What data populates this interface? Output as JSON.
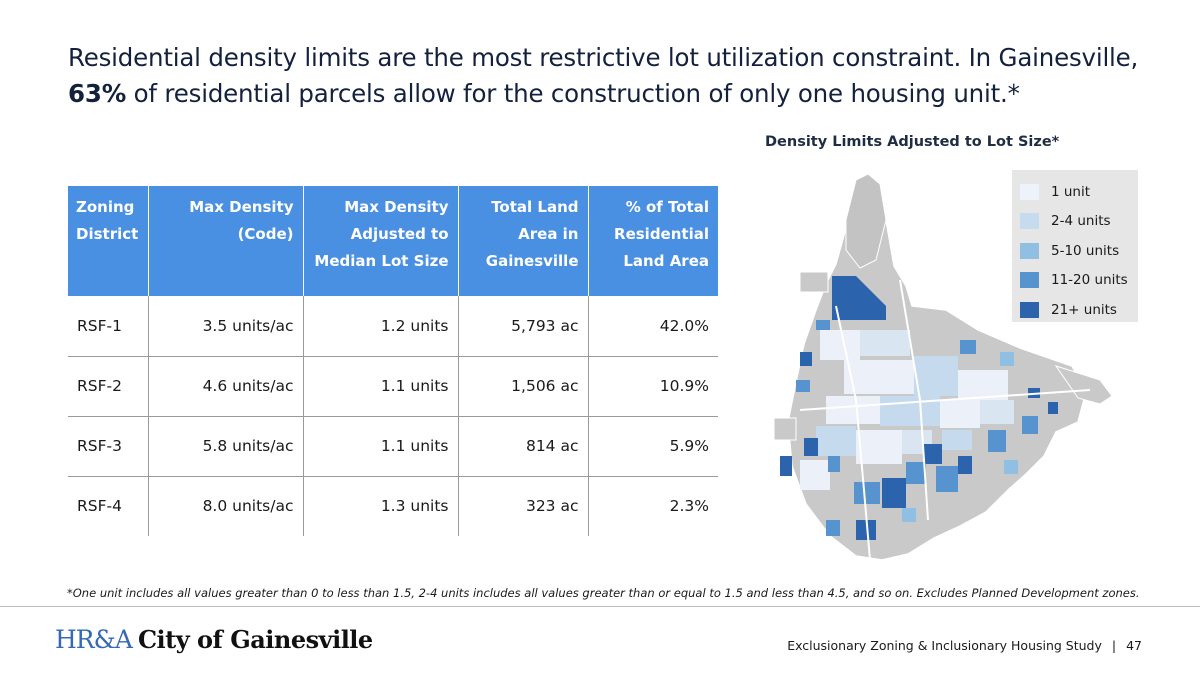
{
  "headline": {
    "part1": "Residential density limits are the most restrictive lot utilization constraint. In Gainesville, ",
    "emphasis": "63%",
    "part2": " of residential parcels allow for the construction of only one housing unit.*"
  },
  "table": {
    "headers": {
      "district": "Zoning District",
      "max_density": "Max Density (Code)",
      "adjusted": "Max Density Adjusted to Median Lot Size",
      "land_area": "Total Land Area in Gainesville",
      "pct": "% of Total Residential Land Area"
    },
    "rows": [
      {
        "district": "RSF-1",
        "max_density": "3.5 units/ac",
        "adjusted": "1.2 units",
        "land_area": "5,793 ac",
        "pct": "42.0%"
      },
      {
        "district": "RSF-2",
        "max_density": "4.6 units/ac",
        "adjusted": "1.1 units",
        "land_area": "1,506 ac",
        "pct": "10.9%"
      },
      {
        "district": "RSF-3",
        "max_density": "5.8 units/ac",
        "adjusted": "1.1 units",
        "land_area": "814 ac",
        "pct": "5.9%"
      },
      {
        "district": "RSF-4",
        "max_density": "8.0 units/ac",
        "adjusted": "1.3 units",
        "land_area": "323 ac",
        "pct": "2.3%"
      }
    ]
  },
  "map": {
    "title": "Density Limits Adjusted to Lot Size*",
    "legend": [
      {
        "label": "1 unit",
        "color": "#eef3fb"
      },
      {
        "label": "2-4 units",
        "color": "#c6dbef"
      },
      {
        "label": "5-10 units",
        "color": "#8fbfe3"
      },
      {
        "label": "11-20 units",
        "color": "#5793cf"
      },
      {
        "label": "21+ units",
        "color": "#2b63ad"
      }
    ]
  },
  "footnote": "*One unit includes all values greater than 0 to less than 1.5, 2-4 units includes all values greater than or equal to 1.5 and less than 4.5, and so on. Excludes Planned Development zones.",
  "footer": {
    "logo_mark": "HR&A",
    "logo_city": "City of Gainesville",
    "study": "Exclusionary Zoning & Inclusionary Housing Study",
    "separator": "|",
    "page": "47"
  }
}
